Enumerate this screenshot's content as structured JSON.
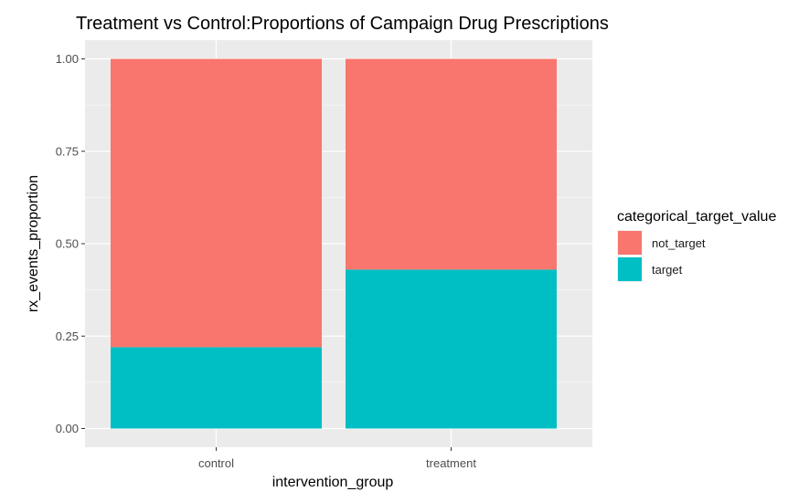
{
  "chart_data": {
    "type": "bar",
    "stacked": true,
    "title": "Treatment vs Control:Proportions of Campaign Drug Prescriptions",
    "xlabel": "intervention_group",
    "ylabel": "rx_events_proportion",
    "categories": [
      "control",
      "treatment"
    ],
    "ylim": [
      0,
      1
    ],
    "yticks": [
      "0.00",
      "0.25",
      "0.50",
      "0.75",
      "1.00"
    ],
    "ytick_values": [
      0,
      0.25,
      0.5,
      0.75,
      1.0
    ],
    "grid": true,
    "legend_position": "right",
    "legend_title": "categorical_target_value",
    "series": [
      {
        "name": "target",
        "values": [
          0.22,
          0.43
        ],
        "color": "#00BFC4"
      },
      {
        "name": "not_target",
        "values": [
          0.78,
          0.57
        ],
        "color": "#F8766D"
      }
    ],
    "legend_order": [
      "not_target",
      "target"
    ],
    "panel_background": "#EBEBEB",
    "gridline_color": "#FFFFFF"
  }
}
